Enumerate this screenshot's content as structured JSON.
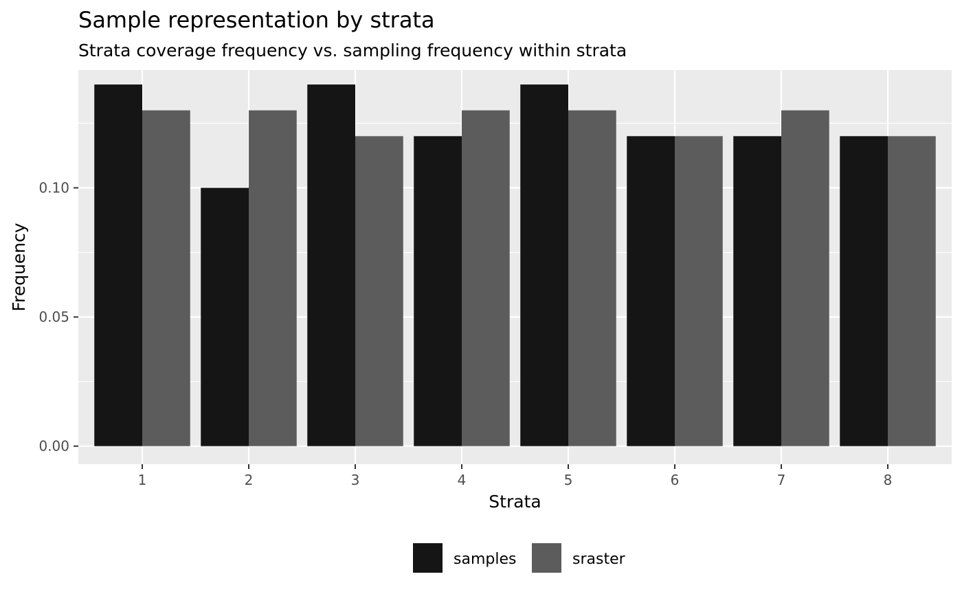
{
  "chart_data": {
    "type": "bar",
    "title": "Sample representation by strata",
    "subtitle": "Strata coverage frequency vs. sampling frequency within strata",
    "xlabel": "Strata",
    "ylabel": "Frequency",
    "categories": [
      "1",
      "2",
      "3",
      "4",
      "5",
      "6",
      "7",
      "8"
    ],
    "series": [
      {
        "name": "samples",
        "color": "#151515",
        "values": [
          0.14,
          0.1,
          0.14,
          0.12,
          0.14,
          0.12,
          0.12,
          0.12
        ]
      },
      {
        "name": "sraster",
        "color": "#5c5c5c",
        "values": [
          0.13,
          0.13,
          0.12,
          0.13,
          0.13,
          0.12,
          0.13,
          0.12
        ]
      }
    ],
    "ylim": [
      -0.007,
      0.1456
    ],
    "yticks": [
      0.0,
      0.05,
      0.1
    ],
    "ytick_labels": [
      "0.00",
      "0.05",
      "0.10"
    ],
    "grid": true,
    "legend_position": "bottom",
    "panel_background": "#ebebeb"
  }
}
